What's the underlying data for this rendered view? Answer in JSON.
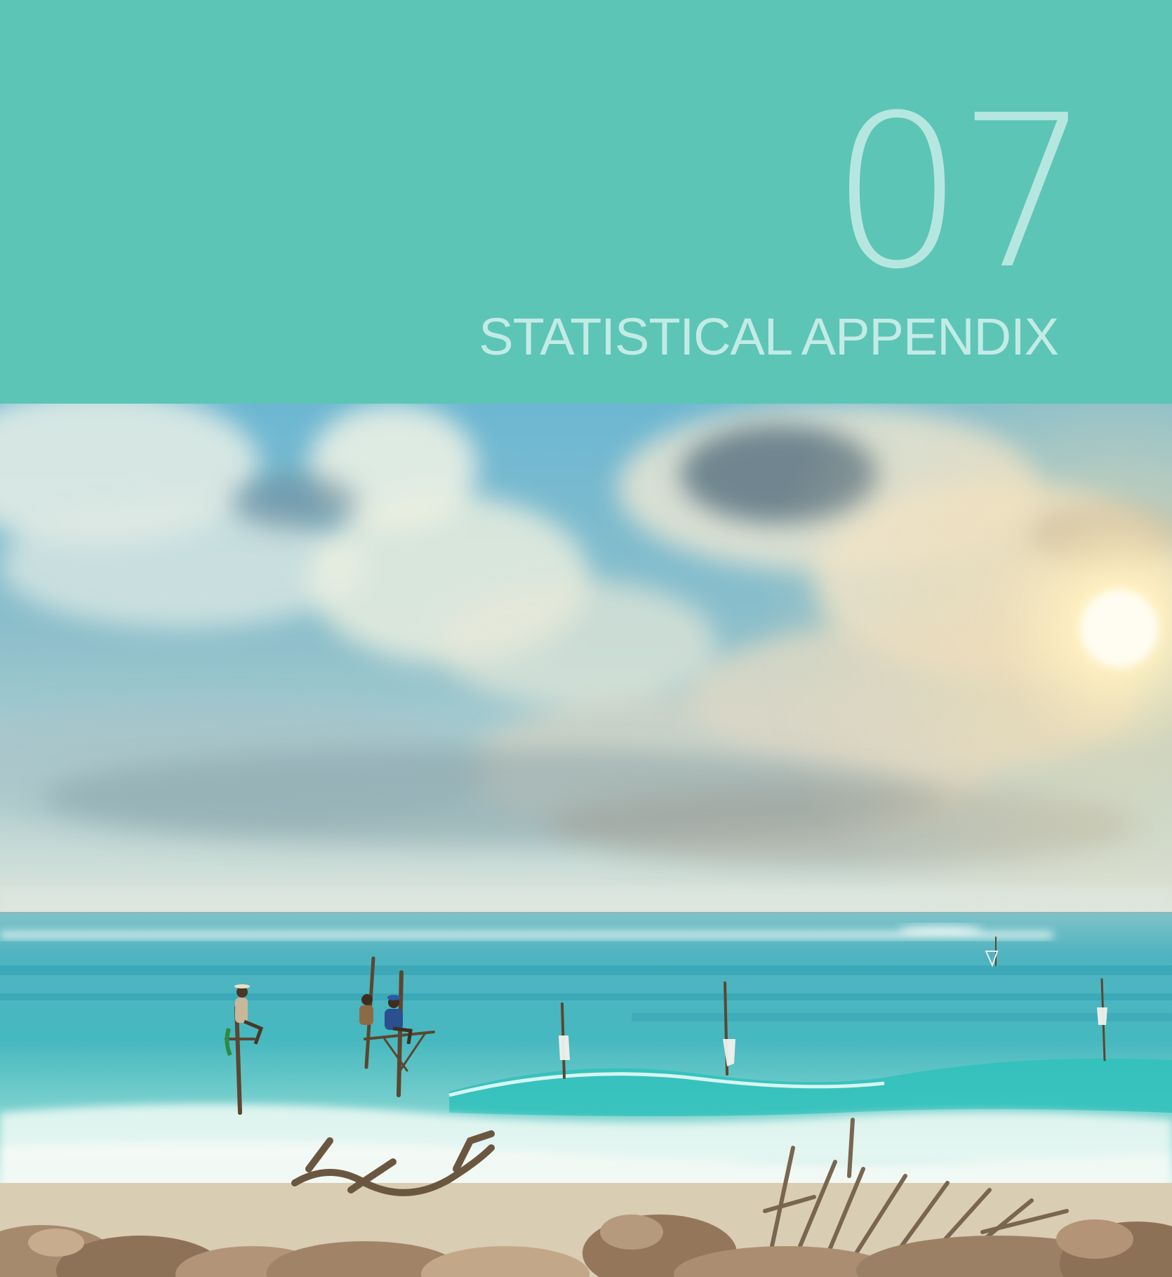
{
  "chapter": {
    "number": "07",
    "title": "STATISTICAL APPENDIX"
  },
  "colors": {
    "header_background": "#5cc5b6",
    "number_text": "#b5e7e0",
    "title_text": "#c3ebe6"
  },
  "photo": {
    "subject": "stilt-fishermen-beach-scene"
  }
}
